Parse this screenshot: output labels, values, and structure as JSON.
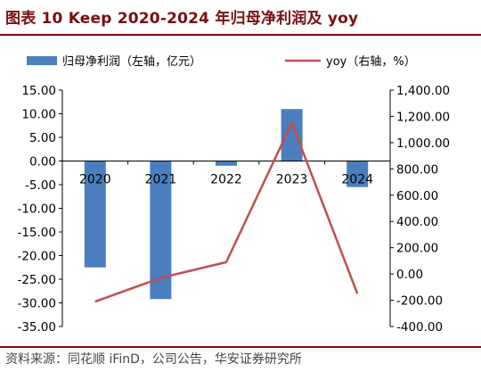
{
  "header": {
    "title": "图表 10 Keep 2020-2024 年归母净利润及 yoy"
  },
  "footer": {
    "source": "资料来源：同花顺 iFinD，公司公告，华安证券研究所"
  },
  "colors": {
    "bar": "#4a7ebf",
    "line": "#c0504d",
    "title": "#7a0e12",
    "axis": "#000000"
  },
  "chart_data": {
    "type": "bar",
    "categories": [
      "2020",
      "2021",
      "2022",
      "2023",
      "2024"
    ],
    "series": [
      {
        "name": "归母净利润（左轴，亿元）",
        "type": "bar",
        "axis": "left",
        "values": [
          -22.5,
          -29.2,
          -1.0,
          11.0,
          -5.5
        ]
      },
      {
        "name": "yoy（右轴，%）",
        "type": "line",
        "axis": "right",
        "values": [
          -210,
          -30,
          90,
          1150,
          -150
        ]
      }
    ],
    "left_axis": {
      "ylim": [
        -35,
        15
      ],
      "ticks": [
        15,
        10,
        5,
        0,
        -5,
        -10,
        -15,
        -20,
        -25,
        -30,
        -35
      ],
      "tick_labels": [
        "15.00",
        "10.00",
        "5.00",
        "0.00",
        "-5.00",
        "-10.00",
        "-15.00",
        "-20.00",
        "-25.00",
        "-30.00",
        "-35.00"
      ]
    },
    "right_axis": {
      "ylim": [
        -400,
        1400
      ],
      "ticks": [
        1400,
        1200,
        1000,
        800,
        600,
        400,
        200,
        0,
        -200,
        -400
      ],
      "tick_labels": [
        "1,400.00",
        "1,200.00",
        "1,000.00",
        "800.00",
        "600.00",
        "400.00",
        "200.00",
        "0.00",
        "-200.00",
        "-400.00"
      ]
    },
    "legend": {
      "placement": "top",
      "bar_label": "归母净利润（左轴，亿元）",
      "line_label": "yoy（右轴，%）"
    },
    "grid": false
  }
}
